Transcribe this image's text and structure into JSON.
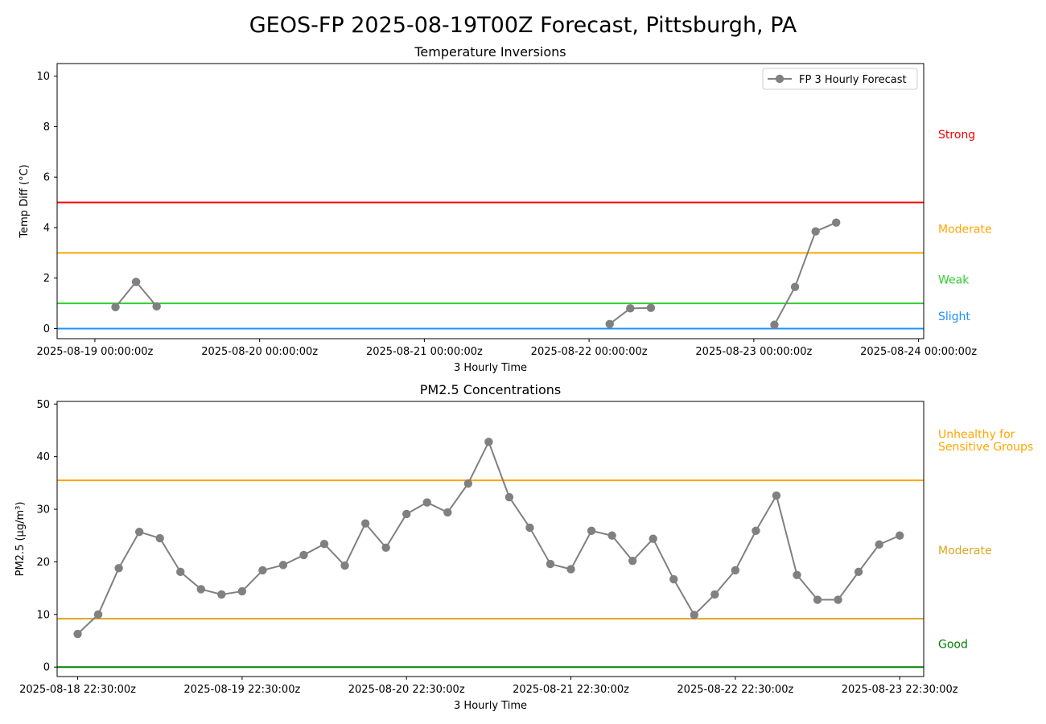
{
  "figure": {
    "title": "GEOS-FP 2025-08-19T00Z Forecast, Pittsburgh, PA"
  },
  "chart_data": [
    {
      "type": "line",
      "title": "Temperature Inversions",
      "xlabel": "3 Hourly Time",
      "ylabel": "Temp Diff (°C)",
      "ylim": [
        -0.4,
        10.5
      ],
      "xlim": [
        "2025-08-18T18:30:00Z",
        "2025-08-24T00:45:00Z"
      ],
      "grid": false,
      "legend_position": "top-right",
      "x_tick_labels": [
        "2025-08-19 00:00:00z",
        "2025-08-20 00:00:00z",
        "2025-08-21 00:00:00z",
        "2025-08-22 00:00:00z",
        "2025-08-23 00:00:00z",
        "2025-08-24 00:00:00z"
      ],
      "x_ticks": [
        "2025-08-19T00:00:00Z",
        "2025-08-20T00:00:00Z",
        "2025-08-21T00:00:00Z",
        "2025-08-22T00:00:00Z",
        "2025-08-23T00:00:00Z",
        "2025-08-24T00:00:00Z"
      ],
      "y_ticks": [
        0,
        2,
        4,
        6,
        8,
        10
      ],
      "series": [
        {
          "name": "FP 3 Hourly Forecast",
          "color": "#808080",
          "points": [
            {
              "x": "2025-08-19T03:00:00Z",
              "y": 0.85
            },
            {
              "x": "2025-08-19T06:00:00Z",
              "y": 1.85
            },
            {
              "x": "2025-08-19T09:00:00Z",
              "y": 0.88
            },
            {
              "x": "2025-08-19T12:00:00Z",
              "y": null
            },
            {
              "x": "2025-08-22T03:00:00Z",
              "y": 0.18
            },
            {
              "x": "2025-08-22T06:00:00Z",
              "y": 0.8
            },
            {
              "x": "2025-08-22T09:00:00Z",
              "y": 0.82
            },
            {
              "x": "2025-08-22T12:00:00Z",
              "y": null
            },
            {
              "x": "2025-08-23T03:00:00Z",
              "y": 0.15
            },
            {
              "x": "2025-08-23T06:00:00Z",
              "y": 1.65
            },
            {
              "x": "2025-08-23T09:00:00Z",
              "y": 3.85
            },
            {
              "x": "2025-08-23T12:00:00Z",
              "y": 4.2
            }
          ]
        }
      ],
      "thresholds": [
        {
          "value": 0,
          "color": "#1e90ff"
        },
        {
          "value": 1,
          "color": "#32cd32"
        },
        {
          "value": 3,
          "color": "#ffa500"
        },
        {
          "value": 5,
          "color": "#ff0000"
        }
      ],
      "category_labels": [
        {
          "text": "Strong",
          "y": 7.7,
          "color": "#ff0000"
        },
        {
          "text": "Moderate",
          "y": 3.95,
          "color": "#ffa500"
        },
        {
          "text": "Weak",
          "y": 1.95,
          "color": "#32cd32"
        },
        {
          "text": "Slight",
          "y": 0.5,
          "color": "#1e90ff"
        }
      ]
    },
    {
      "type": "line",
      "title": "PM2.5 Concentrations",
      "xlabel": "3 Hourly Time",
      "ylabel": "PM2.5 (µg/m³)",
      "ylim": [
        -1.8,
        50.5
      ],
      "xlim": [
        "2025-08-18T19:30:00Z",
        "2025-08-24T02:00:00Z"
      ],
      "grid": false,
      "x_tick_labels": [
        "2025-08-18 22:30:00z",
        "2025-08-19 22:30:00z",
        "2025-08-20 22:30:00z",
        "2025-08-21 22:30:00z",
        "2025-08-22 22:30:00z",
        "2025-08-23 22:30:00z"
      ],
      "x_ticks": [
        "2025-08-18T22:30:00Z",
        "2025-08-19T22:30:00Z",
        "2025-08-20T22:30:00Z",
        "2025-08-21T22:30:00Z",
        "2025-08-22T22:30:00Z",
        "2025-08-23T22:30:00Z"
      ],
      "y_ticks": [
        0,
        10,
        20,
        30,
        40,
        50
      ],
      "series": [
        {
          "color": "#808080",
          "points": [
            {
              "x": "2025-08-18T22:30:00Z",
              "y": 6.3
            },
            {
              "x": "2025-08-19T01:30:00Z",
              "y": 10.0
            },
            {
              "x": "2025-08-19T04:30:00Z",
              "y": 18.8
            },
            {
              "x": "2025-08-19T07:30:00Z",
              "y": 25.7
            },
            {
              "x": "2025-08-19T10:30:00Z",
              "y": 24.5
            },
            {
              "x": "2025-08-19T13:30:00Z",
              "y": 18.1
            },
            {
              "x": "2025-08-19T16:30:00Z",
              "y": 14.8
            },
            {
              "x": "2025-08-19T19:30:00Z",
              "y": 13.8
            },
            {
              "x": "2025-08-19T22:30:00Z",
              "y": 14.4
            },
            {
              "x": "2025-08-20T01:30:00Z",
              "y": 18.4
            },
            {
              "x": "2025-08-20T04:30:00Z",
              "y": 19.4
            },
            {
              "x": "2025-08-20T07:30:00Z",
              "y": 21.3
            },
            {
              "x": "2025-08-20T10:30:00Z",
              "y": 23.4
            },
            {
              "x": "2025-08-20T13:30:00Z",
              "y": 19.3
            },
            {
              "x": "2025-08-20T16:30:00Z",
              "y": 27.3
            },
            {
              "x": "2025-08-20T19:30:00Z",
              "y": 22.7
            },
            {
              "x": "2025-08-20T22:30:00Z",
              "y": 29.1
            },
            {
              "x": "2025-08-21T01:30:00Z",
              "y": 31.3
            },
            {
              "x": "2025-08-21T04:30:00Z",
              "y": 29.4
            },
            {
              "x": "2025-08-21T07:30:00Z",
              "y": 34.9
            },
            {
              "x": "2025-08-21T10:30:00Z",
              "y": 42.8
            },
            {
              "x": "2025-08-21T13:30:00Z",
              "y": 32.3
            },
            {
              "x": "2025-08-21T16:30:00Z",
              "y": 26.5
            },
            {
              "x": "2025-08-21T19:30:00Z",
              "y": 19.6
            },
            {
              "x": "2025-08-21T22:30:00Z",
              "y": 18.6
            },
            {
              "x": "2025-08-22T01:30:00Z",
              "y": 25.9
            },
            {
              "x": "2025-08-22T04:30:00Z",
              "y": 25.0
            },
            {
              "x": "2025-08-22T07:30:00Z",
              "y": 20.2
            },
            {
              "x": "2025-08-22T10:30:00Z",
              "y": 24.4
            },
            {
              "x": "2025-08-22T13:30:00Z",
              "y": 16.7
            },
            {
              "x": "2025-08-22T16:30:00Z",
              "y": 9.9
            },
            {
              "x": "2025-08-22T19:30:00Z",
              "y": 13.8
            },
            {
              "x": "2025-08-22T22:30:00Z",
              "y": 18.4
            },
            {
              "x": "2025-08-23T01:30:00Z",
              "y": 25.9
            },
            {
              "x": "2025-08-23T04:30:00Z",
              "y": 32.6
            },
            {
              "x": "2025-08-23T07:30:00Z",
              "y": 17.5
            },
            {
              "x": "2025-08-23T10:30:00Z",
              "y": 12.8
            },
            {
              "x": "2025-08-23T13:30:00Z",
              "y": 12.8
            },
            {
              "x": "2025-08-23T16:30:00Z",
              "y": 18.1
            },
            {
              "x": "2025-08-23T19:30:00Z",
              "y": 23.3
            },
            {
              "x": "2025-08-23T22:30:00Z",
              "y": 25.0
            }
          ]
        }
      ],
      "thresholds": [
        {
          "value": 0,
          "color": "#008000"
        },
        {
          "value": 9.2,
          "color": "#daa520"
        },
        {
          "value": 35.5,
          "color": "#ffa500"
        }
      ],
      "category_labels": [
        {
          "text": "Unhealthy for",
          "y": 44.3,
          "color": "#ffa500"
        },
        {
          "text": "Sensitive Groups",
          "y": 41.9,
          "color": "#ffa500"
        },
        {
          "text": "Moderate",
          "y": 22.2,
          "color": "#daa520"
        },
        {
          "text": "Good",
          "y": 4.4,
          "color": "#008000"
        }
      ]
    }
  ]
}
